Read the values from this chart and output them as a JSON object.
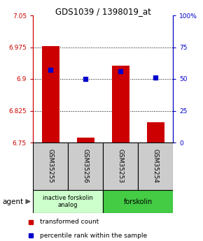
{
  "title": "GDS1039 / 1398019_at",
  "samples": [
    "GSM35255",
    "GSM35256",
    "GSM35253",
    "GSM35254"
  ],
  "bar_values": [
    6.978,
    6.762,
    6.932,
    6.797
  ],
  "percentile_values": [
    57,
    50,
    56,
    51
  ],
  "baseline": 6.75,
  "ylim_left": [
    6.75,
    7.05
  ],
  "ylim_right": [
    0,
    100
  ],
  "yticks_left": [
    6.75,
    6.825,
    6.9,
    6.975,
    7.05
  ],
  "yticks_right": [
    0,
    25,
    50,
    75,
    100
  ],
  "ytick_labels_left": [
    "6.75",
    "6.825",
    "6.9",
    "6.975",
    "7.05"
  ],
  "ytick_labels_right": [
    "0",
    "25",
    "50",
    "75",
    "100%"
  ],
  "bar_color": "#cc0000",
  "square_color": "#0000cc",
  "left_axis_color": "#cc0000",
  "right_axis_color": "#0000cc",
  "group0_label": "inactive forskolin\nanalog",
  "group0_color": "#ccffcc",
  "group1_label": "forskolin",
  "group1_color": "#44cc44",
  "agent_label": "agent",
  "legend_bar_label": "transformed count",
  "legend_square_label": "percentile rank within the sample",
  "bar_width": 0.5
}
